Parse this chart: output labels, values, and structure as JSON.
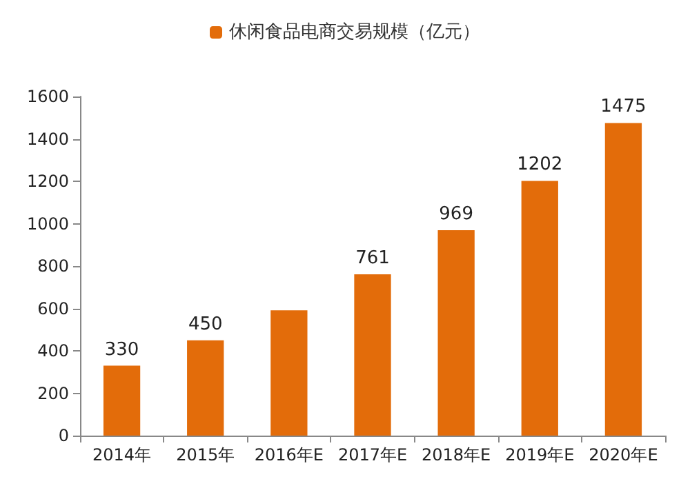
{
  "chart_data": {
    "type": "bar",
    "categories": [
      "2014年",
      "2015年",
      "2016年E",
      "2017年E",
      "2018年E",
      "2019年E",
      "2020年E"
    ],
    "series": [
      {
        "name": "休闲食品电商交易规模（亿元）",
        "color": "#e36c0a",
        "values": [
          330,
          450,
          591,
          761,
          969,
          1202,
          1475
        ],
        "value_labels": [
          "330",
          "450",
          null,
          "761",
          "969",
          "1202",
          "1475"
        ]
      }
    ],
    "ylim": [
      0,
      1600
    ],
    "yticks": [
      0,
      200,
      400,
      600,
      800,
      1000,
      1200,
      1400,
      1600
    ],
    "grid": false,
    "legend": "top"
  }
}
